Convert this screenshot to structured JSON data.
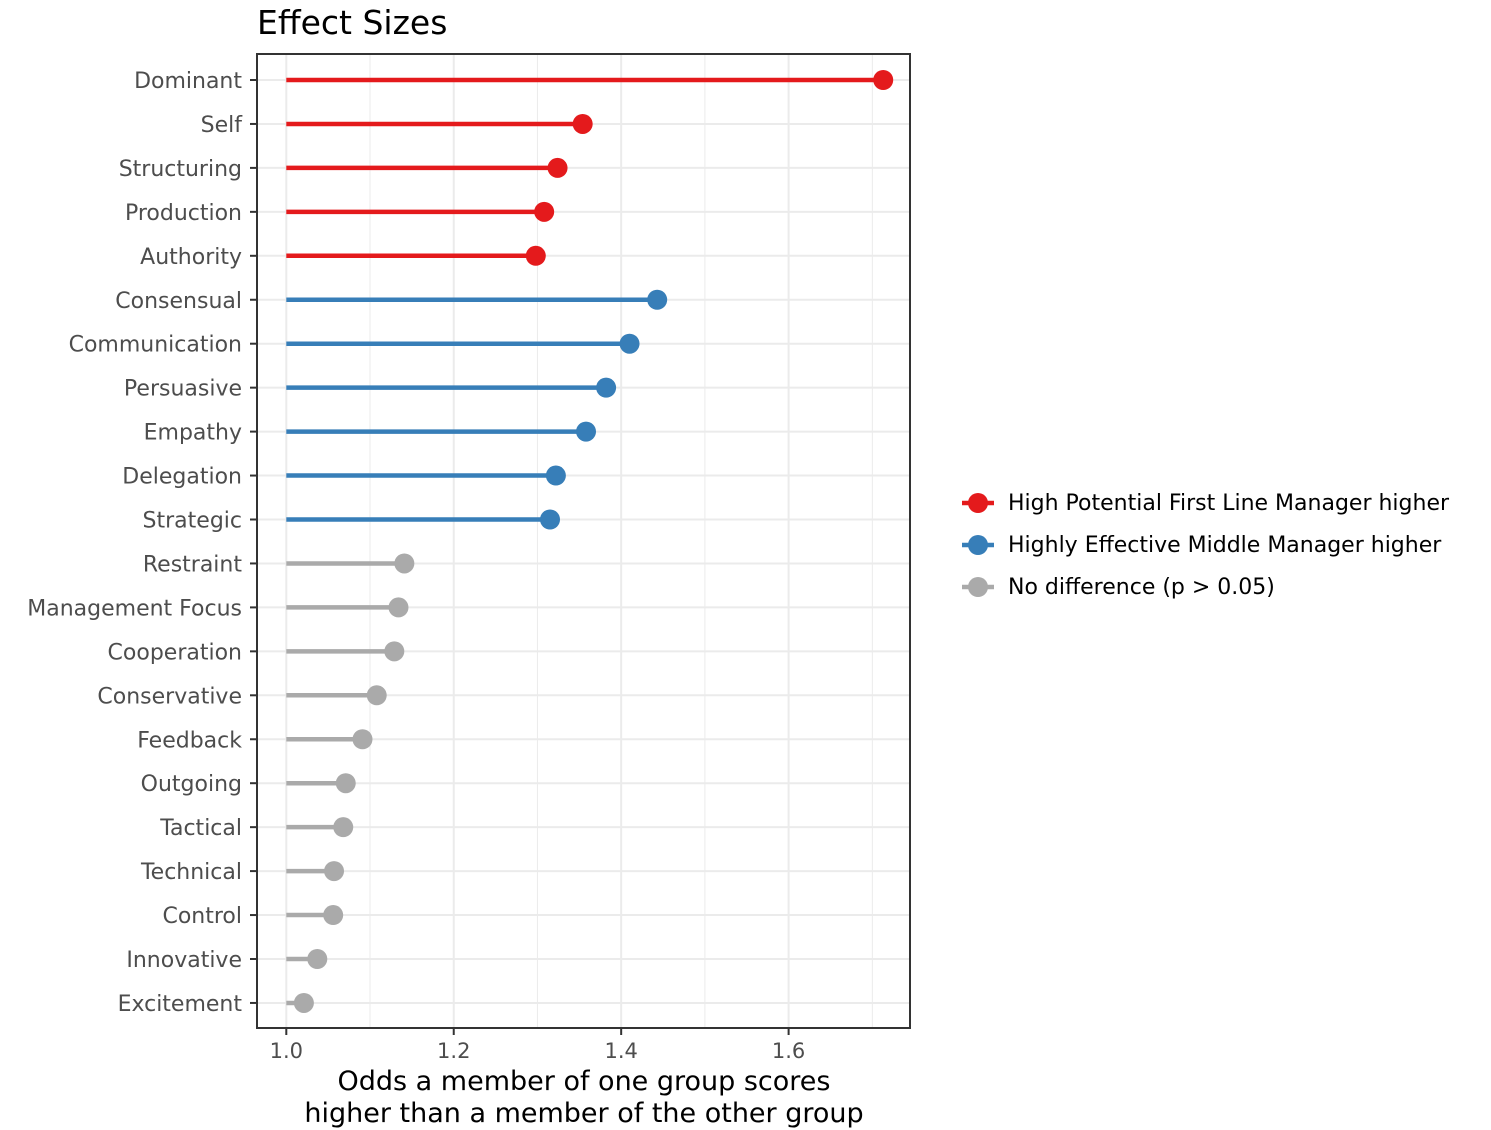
{
  "chart_data": {
    "type": "lollipop",
    "title": "Effect Sizes",
    "xlabel": [
      "Odds a member of one group scores",
      "higher than a member of the other group"
    ],
    "ylabel": "",
    "xlim": [
      0.965,
      1.745
    ],
    "xticks": [
      1.0,
      1.2,
      1.4,
      1.6
    ],
    "xtick_labels": [
      "1.0",
      "1.2",
      "1.4",
      "1.6"
    ],
    "baseline": 1.0,
    "grid": true,
    "legend_position": "right",
    "colors": {
      "first_line": "#e41a1c",
      "middle": "#377eb8",
      "none": "#aaaaaa"
    },
    "legend": [
      {
        "key": "first_line",
        "label": "High Potential First Line Manager higher"
      },
      {
        "key": "middle",
        "label": "Highly Effective Middle Manager higher"
      },
      {
        "key": "none",
        "label": "No difference (p > 0.05)"
      }
    ],
    "points": [
      {
        "label": "Dominant",
        "value": 1.713,
        "group": "first_line"
      },
      {
        "label": "Self",
        "value": 1.354,
        "group": "first_line"
      },
      {
        "label": "Structuring",
        "value": 1.324,
        "group": "first_line"
      },
      {
        "label": "Production",
        "value": 1.308,
        "group": "first_line"
      },
      {
        "label": "Authority",
        "value": 1.298,
        "group": "first_line"
      },
      {
        "label": "Consensual",
        "value": 1.443,
        "group": "middle"
      },
      {
        "label": "Communication",
        "value": 1.41,
        "group": "middle"
      },
      {
        "label": "Persuasive",
        "value": 1.382,
        "group": "middle"
      },
      {
        "label": "Empathy",
        "value": 1.358,
        "group": "middle"
      },
      {
        "label": "Delegation",
        "value": 1.322,
        "group": "middle"
      },
      {
        "label": "Strategic",
        "value": 1.315,
        "group": "middle"
      },
      {
        "label": "Restraint",
        "value": 1.141,
        "group": "none"
      },
      {
        "label": "Management Focus",
        "value": 1.134,
        "group": "none"
      },
      {
        "label": "Cooperation",
        "value": 1.129,
        "group": "none"
      },
      {
        "label": "Conservative",
        "value": 1.108,
        "group": "none"
      },
      {
        "label": "Feedback",
        "value": 1.091,
        "group": "none"
      },
      {
        "label": "Outgoing",
        "value": 1.071,
        "group": "none"
      },
      {
        "label": "Tactical",
        "value": 1.068,
        "group": "none"
      },
      {
        "label": "Technical",
        "value": 1.057,
        "group": "none"
      },
      {
        "label": "Control",
        "value": 1.056,
        "group": "none"
      },
      {
        "label": "Innovative",
        "value": 1.037,
        "group": "none"
      },
      {
        "label": "Excitement",
        "value": 1.021,
        "group": "none"
      }
    ]
  }
}
